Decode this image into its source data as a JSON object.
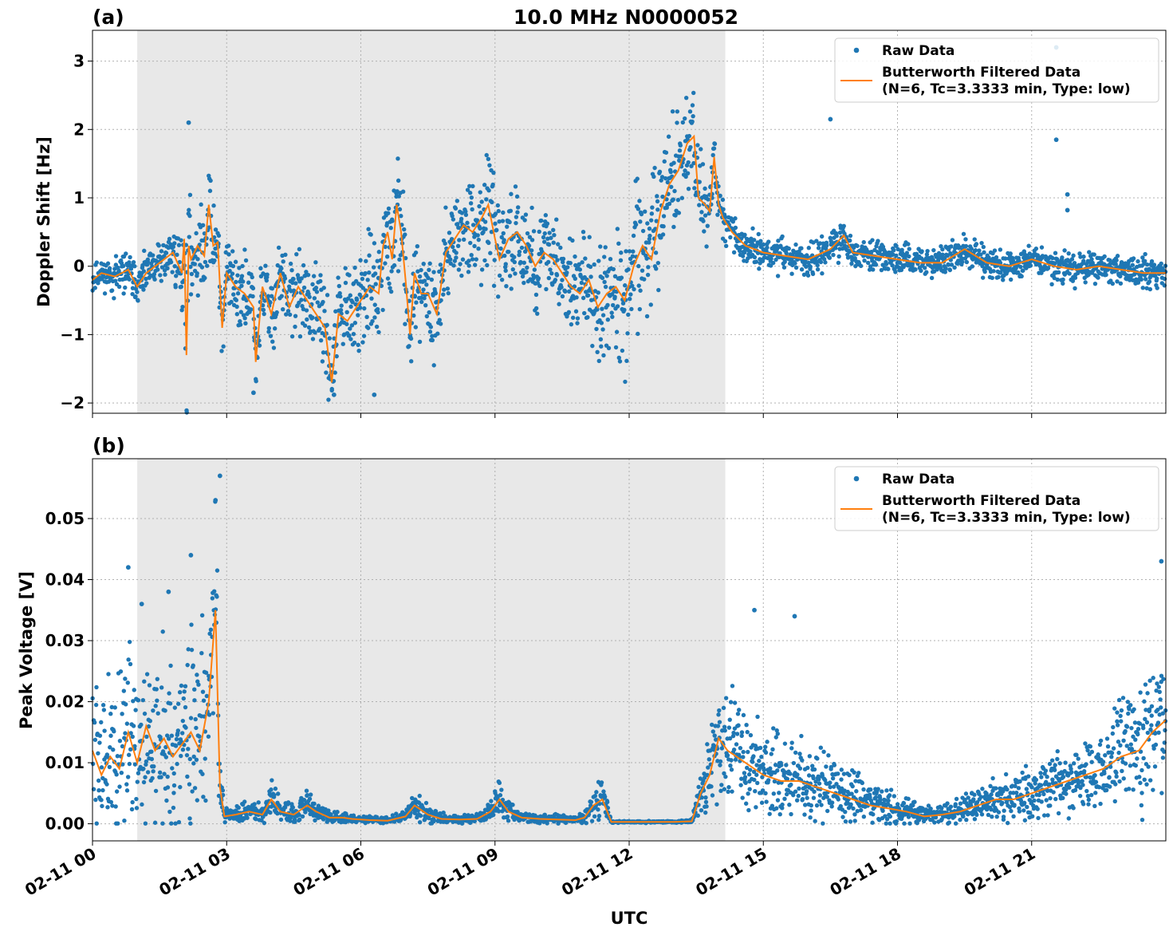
{
  "figure": {
    "title": "10.0 MHz N0000052",
    "xlabel": "UTC",
    "x_tick_labels": [
      "02-11 00",
      "02-11 03",
      "02-11 06",
      "02-11 09",
      "02-11 12",
      "02-11 15",
      "02-11 18",
      "02-11 21"
    ],
    "night_shading_hours": [
      1.0,
      14.15
    ],
    "colors": {
      "raw": "#1f77b4",
      "filtered": "#ff7f0e",
      "shade": "#e8e8e8",
      "grid": "#b0b0b0"
    },
    "legend": {
      "raw_label": "Raw Data",
      "filtered_label_1": "Butterworth Filtered Data",
      "filtered_label_2": "(N=6, Tc=3.3333 min, Type: low)",
      "placement": "upper right"
    }
  },
  "chart_data": [
    {
      "type": "scatter",
      "panel_label": "(a)",
      "ylabel": "Doppler Shift [Hz]",
      "xlim_hours": [
        0,
        24
      ],
      "ylim": [
        -2.15,
        3.45
      ],
      "y_ticks": [
        -2,
        -1,
        0,
        1,
        2,
        3
      ],
      "y_tick_labels": [
        "−2",
        "−1",
        "0",
        "1",
        "2",
        "3"
      ],
      "series": [
        {
          "name": "Butterworth Filtered Data",
          "role": "filtered",
          "x": [
            0,
            0.2,
            0.5,
            0.8,
            1.0,
            1.2,
            1.5,
            1.8,
            2.0,
            2.05,
            2.1,
            2.15,
            2.2,
            2.35,
            2.5,
            2.6,
            2.7,
            2.8,
            2.9,
            3.0,
            3.2,
            3.4,
            3.6,
            3.65,
            3.8,
            4.0,
            4.2,
            4.4,
            4.6,
            4.8,
            5.0,
            5.2,
            5.35,
            5.5,
            5.7,
            6.0,
            6.2,
            6.4,
            6.5,
            6.6,
            6.7,
            6.8,
            6.9,
            7.0,
            7.1,
            7.2,
            7.35,
            7.5,
            7.7,
            7.9,
            8.1,
            8.3,
            8.5,
            8.7,
            8.85,
            9.0,
            9.1,
            9.3,
            9.5,
            9.7,
            9.9,
            10.1,
            10.3,
            10.5,
            10.7,
            10.9,
            11.1,
            11.3,
            11.5,
            11.7,
            11.9,
            12.1,
            12.3,
            12.5,
            12.7,
            12.9,
            13.1,
            13.3,
            13.45,
            13.55,
            13.7,
            13.8,
            13.9,
            14.0,
            14.1,
            14.3,
            14.6,
            15.0,
            15.5,
            16.0,
            16.5,
            16.8,
            17.0,
            17.5,
            18.0,
            18.5,
            19.0,
            19.5,
            20.0,
            20.5,
            21.0,
            21.5,
            22.0,
            22.5,
            23.0,
            23.5,
            24.0
          ],
          "y": [
            -0.2,
            -0.1,
            -0.15,
            -0.05,
            -0.3,
            -0.1,
            0.05,
            0.2,
            -0.1,
            0.4,
            -1.3,
            0.3,
            0.1,
            0.3,
            0.15,
            0.9,
            0.3,
            0.35,
            -0.9,
            -0.1,
            -0.3,
            -0.4,
            -0.6,
            -1.4,
            -0.3,
            -0.7,
            -0.1,
            -0.6,
            -0.3,
            -0.5,
            -0.7,
            -0.9,
            -1.7,
            -0.7,
            -0.8,
            -0.5,
            -0.3,
            -0.4,
            0.3,
            0.5,
            0.1,
            0.9,
            0.5,
            -0.2,
            -1.0,
            -0.1,
            -0.4,
            -0.4,
            -0.7,
            0.2,
            0.4,
            0.6,
            0.5,
            0.7,
            0.9,
            0.4,
            0.1,
            0.4,
            0.5,
            0.3,
            0.0,
            0.2,
            0.1,
            -0.1,
            -0.3,
            -0.4,
            -0.2,
            -0.6,
            -0.4,
            -0.3,
            -0.5,
            0.0,
            0.3,
            0.1,
            0.8,
            1.2,
            1.4,
            1.8,
            1.9,
            1.0,
            0.9,
            0.8,
            1.6,
            0.9,
            0.7,
            0.5,
            0.3,
            0.2,
            0.15,
            0.1,
            0.25,
            0.45,
            0.2,
            0.15,
            0.1,
            0.05,
            0.05,
            0.25,
            0.05,
            0.0,
            0.1,
            0.0,
            -0.05,
            0.0,
            -0.05,
            -0.1,
            -0.1
          ]
        },
        {
          "name": "Raw Data",
          "role": "raw",
          "scatter_spread": [
            0.15,
            0.15,
            0.2,
            0.2,
            0.2,
            0.2,
            0.25,
            0.25,
            0.4,
            1.2,
            1.2,
            0.8,
            0.4,
            0.5,
            0.5,
            0.4,
            0.5,
            0.5,
            0.5,
            0.4,
            0.4,
            0.45,
            0.5,
            0.5,
            0.5,
            0.45,
            0.45,
            0.45,
            0.45,
            0.4,
            0.45,
            0.5,
            0.4,
            0.5,
            0.5,
            0.55,
            0.55,
            0.55,
            0.55,
            0.55,
            0.55,
            0.55,
            0.55,
            0.55,
            0.5,
            0.5,
            0.5,
            0.5,
            0.5,
            0.5,
            0.5,
            0.5,
            0.55,
            0.55,
            0.55,
            0.55,
            0.5,
            0.5,
            0.5,
            0.5,
            0.5,
            0.5,
            0.5,
            0.5,
            0.55,
            0.55,
            0.6,
            0.6,
            0.65,
            0.7,
            0.75,
            0.8,
            0.8,
            0.75,
            0.75,
            0.7,
            0.65,
            0.6,
            0.6,
            0.5,
            0.45,
            0.35,
            0.3,
            0.25,
            0.22,
            0.2,
            0.2,
            0.18,
            0.18,
            0.18,
            0.18,
            0.2,
            0.18,
            0.17,
            0.16,
            0.16,
            0.16,
            0.18,
            0.16,
            0.16,
            0.16,
            0.16,
            0.16,
            0.16,
            0.16,
            0.16,
            0.16
          ],
          "notable_outliers": [
            [
              2.15,
              2.1
            ],
            [
              16.5,
              2.15
            ],
            [
              21.55,
              3.2
            ],
            [
              21.55,
              1.85
            ],
            [
              21.8,
              1.05
            ],
            [
              21.8,
              0.82
            ],
            [
              5.4,
              -1.88
            ],
            [
              6.3,
              -1.88
            ],
            [
              3.6,
              -1.85
            ]
          ]
        }
      ]
    },
    {
      "type": "scatter",
      "panel_label": "(b)",
      "ylabel": "Peak Voltage [V]",
      "xlim_hours": [
        0,
        24
      ],
      "ylim": [
        -0.0028,
        0.0598
      ],
      "y_ticks": [
        0,
        0.01,
        0.02,
        0.03,
        0.04,
        0.05
      ],
      "y_tick_labels": [
        "0.00",
        "0.01",
        "0.02",
        "0.03",
        "0.04",
        "0.05"
      ],
      "series": [
        {
          "name": "Butterworth Filtered Data",
          "role": "filtered",
          "x": [
            0,
            0.2,
            0.4,
            0.6,
            0.8,
            1.0,
            1.2,
            1.4,
            1.6,
            1.8,
            2.0,
            2.2,
            2.4,
            2.6,
            2.75,
            2.85,
            2.95,
            3.2,
            3.5,
            3.8,
            4.0,
            4.2,
            4.5,
            4.8,
            5.0,
            5.3,
            5.6,
            5.8,
            6.2,
            6.6,
            7.0,
            7.2,
            7.5,
            7.8,
            8.2,
            8.6,
            8.9,
            9.1,
            9.3,
            9.6,
            10.0,
            10.4,
            10.8,
            11.0,
            11.2,
            11.4,
            11.6,
            11.8,
            12.2,
            12.6,
            13.0,
            13.4,
            13.6,
            13.8,
            14.0,
            14.2,
            14.6,
            15.0,
            15.4,
            15.8,
            16.2,
            16.6,
            17.0,
            17.4,
            17.8,
            18.2,
            18.6,
            19.0,
            19.4,
            19.8,
            20.2,
            20.6,
            21.0,
            21.4,
            21.8,
            22.2,
            22.6,
            23.0,
            23.4,
            23.7,
            24.0
          ],
          "y": [
            0.012,
            0.008,
            0.011,
            0.009,
            0.015,
            0.01,
            0.016,
            0.012,
            0.014,
            0.011,
            0.013,
            0.015,
            0.012,
            0.02,
            0.035,
            0.006,
            0.0012,
            0.0015,
            0.002,
            0.0015,
            0.004,
            0.002,
            0.0015,
            0.003,
            0.002,
            0.001,
            0.001,
            0.0008,
            0.0006,
            0.0005,
            0.0012,
            0.003,
            0.0015,
            0.0008,
            0.0007,
            0.0008,
            0.002,
            0.004,
            0.002,
            0.001,
            0.0008,
            0.0007,
            0.0006,
            0.001,
            0.003,
            0.004,
            0.0003,
            0.0003,
            0.0003,
            0.0003,
            0.0003,
            0.0004,
            0.005,
            0.008,
            0.014,
            0.012,
            0.01,
            0.008,
            0.007,
            0.007,
            0.006,
            0.005,
            0.004,
            0.003,
            0.0025,
            0.002,
            0.0012,
            0.0015,
            0.002,
            0.003,
            0.004,
            0.004,
            0.005,
            0.006,
            0.007,
            0.008,
            0.009,
            0.011,
            0.012,
            0.015,
            0.017
          ]
        },
        {
          "name": "Raw Data",
          "role": "raw",
          "scatter_spread": [
            0.008,
            0.008,
            0.008,
            0.009,
            0.01,
            0.009,
            0.01,
            0.01,
            0.01,
            0.01,
            0.01,
            0.01,
            0.011,
            0.012,
            0.015,
            0.004,
            0.0008,
            0.001,
            0.0012,
            0.001,
            0.002,
            0.0012,
            0.001,
            0.0015,
            0.0012,
            0.0006,
            0.0005,
            0.0004,
            0.0004,
            0.0003,
            0.0008,
            0.0018,
            0.001,
            0.0006,
            0.0005,
            0.0005,
            0.0012,
            0.002,
            0.0012,
            0.0007,
            0.0005,
            0.0005,
            0.0004,
            0.0007,
            0.0018,
            0.0022,
            0.0001,
            0.0001,
            0.0001,
            0.0001,
            0.0001,
            0.0002,
            0.002,
            0.004,
            0.007,
            0.007,
            0.006,
            0.005,
            0.0045,
            0.0045,
            0.004,
            0.0035,
            0.003,
            0.0025,
            0.002,
            0.0015,
            0.001,
            0.001,
            0.0013,
            0.002,
            0.0025,
            0.0025,
            0.003,
            0.0035,
            0.004,
            0.0045,
            0.005,
            0.006,
            0.007,
            0.008,
            0.009
          ],
          "notable_outliers": [
            [
              0.8,
              0.042
            ],
            [
              1.1,
              0.036
            ],
            [
              1.7,
              0.038
            ],
            [
              2.2,
              0.044
            ],
            [
              2.85,
              0.057
            ],
            [
              2.75,
              0.053
            ],
            [
              14.8,
              0.035
            ],
            [
              15.7,
              0.034
            ],
            [
              23.9,
              0.043
            ]
          ]
        }
      ]
    }
  ]
}
